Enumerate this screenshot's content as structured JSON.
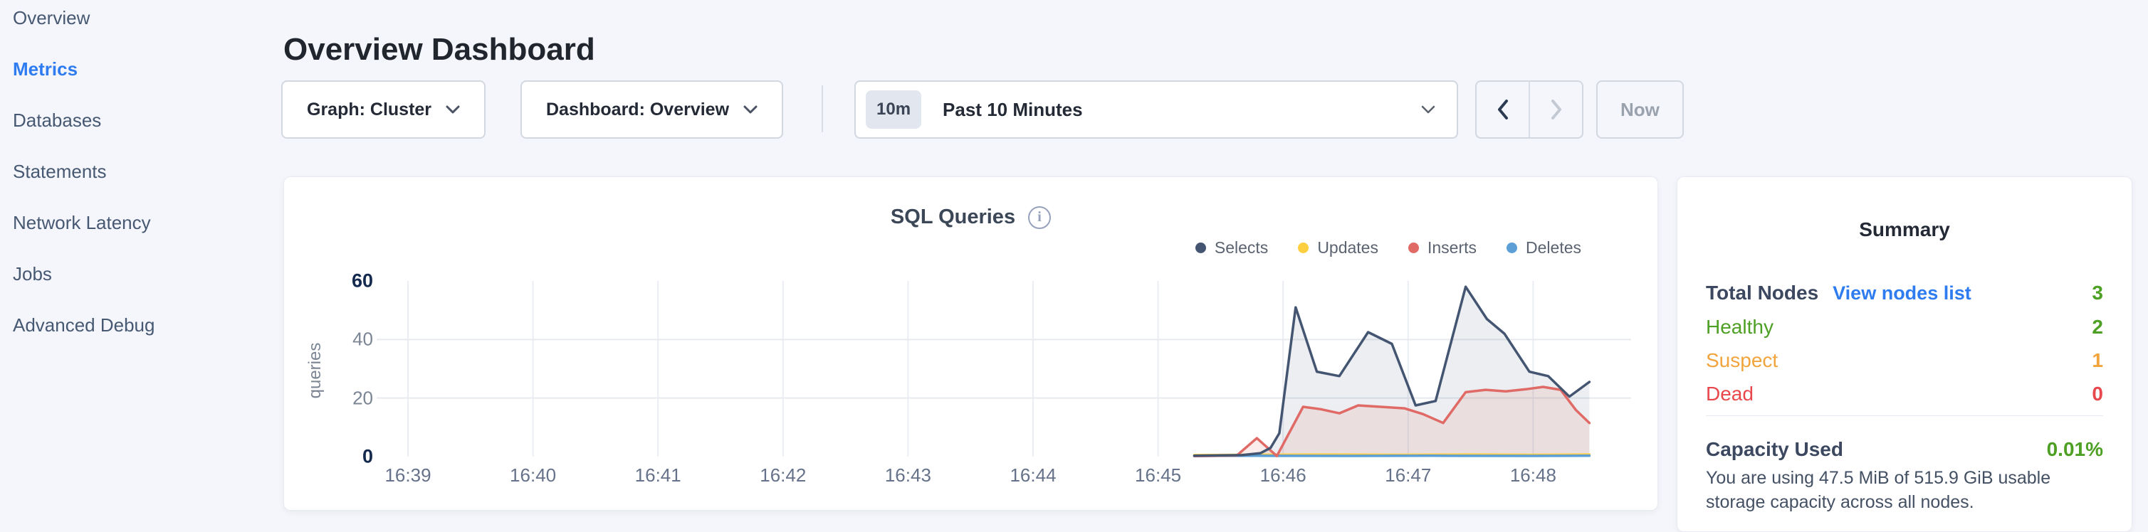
{
  "header": {
    "title": "Overview Dashboard"
  },
  "sidebar": {
    "active_color": "#2e7cf0",
    "items": [
      {
        "label": "Overview",
        "active": false
      },
      {
        "label": "Metrics",
        "active": true
      },
      {
        "label": "Databases",
        "active": false
      },
      {
        "label": "Statements",
        "active": false
      },
      {
        "label": "Network Latency",
        "active": false
      },
      {
        "label": "Jobs",
        "active": false
      },
      {
        "label": "Advanced Debug",
        "active": false
      }
    ]
  },
  "controls": {
    "graph_dropdown": {
      "label": "Graph: Cluster"
    },
    "dashboard_dropdown": {
      "label": "Dashboard: Overview"
    },
    "time_picker": {
      "badge": "10m",
      "label": "Past 10 Minutes"
    },
    "now_button": {
      "label": "Now"
    }
  },
  "chart_card": {
    "title": "SQL Queries",
    "info_icon_glyph": "i"
  },
  "chart_data": {
    "type": "area",
    "title": "SQL Queries",
    "ylabel": "queries",
    "xlabel": "",
    "ylim": [
      0,
      60
    ],
    "y_ticks": [
      0,
      20,
      40,
      60
    ],
    "y_gridlines": [
      20,
      40
    ],
    "x_tick_labels": [
      "16:39",
      "16:40",
      "16:41",
      "16:42",
      "16:43",
      "16:44",
      "16:45",
      "16:46",
      "16:47",
      "16:48"
    ],
    "grid": true,
    "legend_position": "top-right",
    "x_unit": "minutes after 16:39",
    "series": [
      {
        "name": "Selects",
        "color": "#445571",
        "fill": "rgba(71,88,114,0.10)",
        "points": [
          [
            6.29,
            0.3
          ],
          [
            6.67,
            0.5
          ],
          [
            6.82,
            1.2
          ],
          [
            6.9,
            3
          ],
          [
            6.97,
            8
          ],
          [
            7.1,
            51
          ],
          [
            7.27,
            29
          ],
          [
            7.45,
            27.5
          ],
          [
            7.68,
            42.5
          ],
          [
            7.87,
            38.5
          ],
          [
            8.06,
            17.5
          ],
          [
            8.22,
            19
          ],
          [
            8.46,
            58
          ],
          [
            8.63,
            47
          ],
          [
            8.77,
            42
          ],
          [
            8.97,
            29
          ],
          [
            9.12,
            27.5
          ],
          [
            9.29,
            20.5
          ],
          [
            9.45,
            25.5
          ]
        ]
      },
      {
        "name": "Updates",
        "color": "#fccf41",
        "fill": "rgba(252,207,65,0.10)",
        "points": [
          [
            6.29,
            0.5
          ],
          [
            6.7,
            0.6
          ],
          [
            7.3,
            0.7
          ],
          [
            7.9,
            0.6
          ],
          [
            8.5,
            0.7
          ],
          [
            9.0,
            0.6
          ],
          [
            9.45,
            0.7
          ]
        ]
      },
      {
        "name": "Inserts",
        "color": "#e06a66",
        "fill": "rgba(224,106,102,0.12)",
        "points": [
          [
            6.29,
            0.2
          ],
          [
            6.63,
            0.4
          ],
          [
            6.79,
            6.3
          ],
          [
            6.95,
            0.2
          ],
          [
            7.16,
            17
          ],
          [
            7.3,
            16.2
          ],
          [
            7.45,
            14.8
          ],
          [
            7.6,
            17.5
          ],
          [
            7.78,
            17
          ],
          [
            7.97,
            16.5
          ],
          [
            8.12,
            14.5
          ],
          [
            8.28,
            11.5
          ],
          [
            8.46,
            22
          ],
          [
            8.62,
            22.8
          ],
          [
            8.78,
            22.3
          ],
          [
            8.94,
            23
          ],
          [
            9.08,
            23.8
          ],
          [
            9.22,
            22.8
          ],
          [
            9.34,
            16
          ],
          [
            9.45,
            11.5
          ]
        ]
      },
      {
        "name": "Deletes",
        "color": "#5b9fd6",
        "fill": "rgba(91,159,214,0.10)",
        "points": [
          [
            6.29,
            0.25
          ],
          [
            6.8,
            0.3
          ],
          [
            7.5,
            0.25
          ],
          [
            8.2,
            0.3
          ],
          [
            8.9,
            0.25
          ],
          [
            9.45,
            0.3
          ]
        ]
      }
    ]
  },
  "summary": {
    "title": "Summary",
    "total_nodes_label": "Total Nodes",
    "view_nodes_link": "View nodes list",
    "total_nodes_value": "3",
    "total_nodes_color": "#4da024",
    "link_color": "#2e7cf0",
    "rows": [
      {
        "label": "Healthy",
        "value": "2",
        "color": "#4da024"
      },
      {
        "label": "Suspect",
        "value": "1",
        "color": "#f2a43c"
      },
      {
        "label": "Dead",
        "value": "0",
        "color": "#e8474b"
      }
    ],
    "capacity_label": "Capacity Used",
    "capacity_value": "0.01%",
    "capacity_color": "#4da024",
    "capacity_caption": "You are using 47.5 MiB of 515.9 GiB usable storage capacity across all nodes."
  }
}
